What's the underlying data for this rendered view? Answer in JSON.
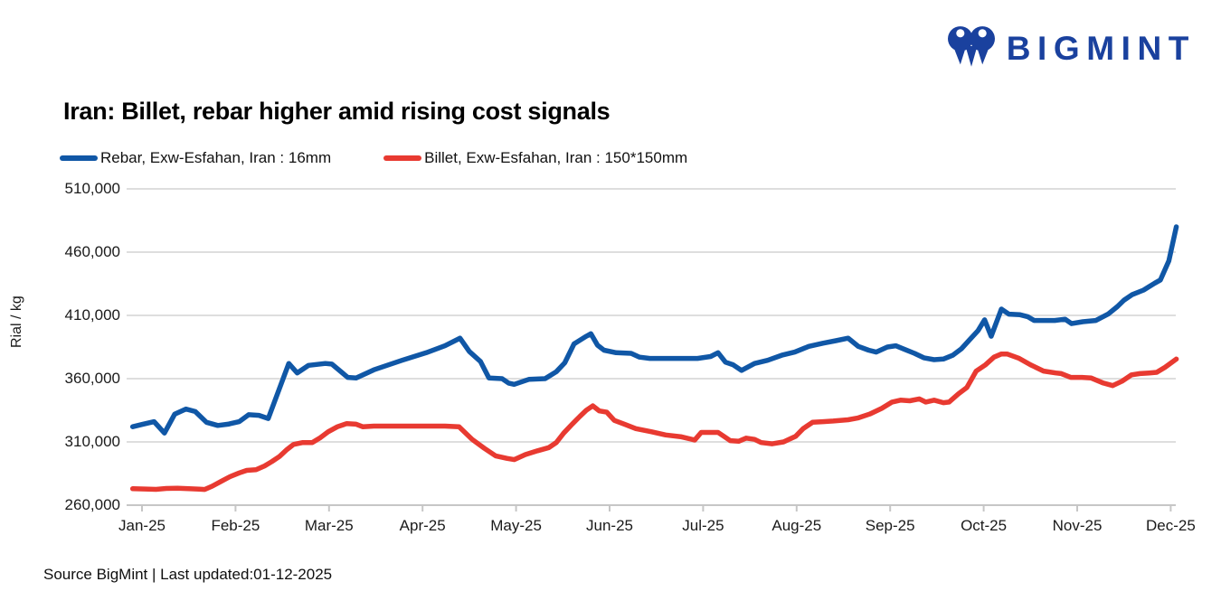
{
  "brand": {
    "name": "BIGMINT",
    "color": "#1A419E"
  },
  "title": "Iran: Billet, rebar higher amid rising cost signals",
  "source_note": "Source BigMint | Last updated:01-12-2025",
  "chart_data": {
    "type": "line",
    "title": "Iran: Billet, rebar higher amid rising cost signals",
    "xlabel": "",
    "ylabel": "Rial / kg",
    "ylim": [
      260000,
      510000
    ],
    "grid": true,
    "legend_position": "top-left",
    "x_ticks": [
      "Jan-25",
      "Feb-25",
      "Mar-25",
      "Apr-25",
      "May-25",
      "Jun-25",
      "Jul-25",
      "Aug-25",
      "Sep-25",
      "Oct-25",
      "Nov-25",
      "Dec-25"
    ],
    "y_ticks": [
      {
        "label": "510,000",
        "value": 510000
      },
      {
        "label": "460,000",
        "value": 460000
      },
      {
        "label": "410,000",
        "value": 410000
      },
      {
        "label": "360,000",
        "value": 360000
      },
      {
        "label": "310,000",
        "value": 310000
      },
      {
        "label": "260,000",
        "value": 260000
      }
    ],
    "x_unit": "month index from Jan-25 tick (0 = Jan-25, 11 = Dec-25)",
    "series": [
      {
        "id": "rebar-16mm",
        "name": "Rebar, Exw-Esfahan, Iran : 16mm",
        "color": "#1057A6",
        "points": [
          [
            -0.1,
            322000
          ],
          [
            0.01,
            324000
          ],
          [
            0.13,
            326000
          ],
          [
            0.24,
            317000
          ],
          [
            0.35,
            332000
          ],
          [
            0.47,
            336000
          ],
          [
            0.57,
            334000
          ],
          [
            0.69,
            325500
          ],
          [
            0.81,
            323000
          ],
          [
            0.92,
            324000
          ],
          [
            1.04,
            326000
          ],
          [
            1.14,
            331500
          ],
          [
            1.25,
            331000
          ],
          [
            1.35,
            328500
          ],
          [
            1.57,
            372000
          ],
          [
            1.66,
            364500
          ],
          [
            1.78,
            370500
          ],
          [
            1.96,
            372000
          ],
          [
            2.03,
            371500
          ],
          [
            2.2,
            361000
          ],
          [
            2.29,
            360500
          ],
          [
            2.48,
            367000
          ],
          [
            2.78,
            374500
          ],
          [
            3.04,
            380500
          ],
          [
            3.24,
            386000
          ],
          [
            3.4,
            392000
          ],
          [
            3.5,
            381500
          ],
          [
            3.62,
            373500
          ],
          [
            3.71,
            360500
          ],
          [
            3.85,
            360000
          ],
          [
            3.92,
            356500
          ],
          [
            3.98,
            355500
          ],
          [
            4.14,
            359500
          ],
          [
            4.31,
            360000
          ],
          [
            4.43,
            365500
          ],
          [
            4.52,
            372500
          ],
          [
            4.62,
            387500
          ],
          [
            4.75,
            393500
          ],
          [
            4.8,
            395500
          ],
          [
            4.87,
            386500
          ],
          [
            4.94,
            382500
          ],
          [
            5.07,
            380500
          ],
          [
            5.23,
            380000
          ],
          [
            5.32,
            377000
          ],
          [
            5.43,
            376000
          ],
          [
            5.94,
            376000
          ],
          [
            6.08,
            377500
          ],
          [
            6.16,
            380500
          ],
          [
            6.24,
            373000
          ],
          [
            6.32,
            371000
          ],
          [
            6.41,
            366500
          ],
          [
            6.55,
            372000
          ],
          [
            6.69,
            374500
          ],
          [
            6.84,
            378500
          ],
          [
            6.98,
            381000
          ],
          [
            7.13,
            385500
          ],
          [
            7.28,
            388000
          ],
          [
            7.42,
            390000
          ],
          [
            7.55,
            392000
          ],
          [
            7.66,
            385500
          ],
          [
            7.77,
            382500
          ],
          [
            7.85,
            381000
          ],
          [
            7.97,
            385000
          ],
          [
            8.06,
            386000
          ],
          [
            8.16,
            383000
          ],
          [
            8.26,
            380000
          ],
          [
            8.36,
            376500
          ],
          [
            8.47,
            375000
          ],
          [
            8.57,
            375500
          ],
          [
            8.67,
            378500
          ],
          [
            8.76,
            383500
          ],
          [
            8.84,
            390000
          ],
          [
            8.94,
            398000
          ],
          [
            9.01,
            406500
          ],
          [
            9.08,
            393500
          ],
          [
            9.19,
            415000
          ],
          [
            9.27,
            411000
          ],
          [
            9.39,
            410500
          ],
          [
            9.47,
            409000
          ],
          [
            9.54,
            406000
          ],
          [
            9.76,
            406000
          ],
          [
            9.87,
            407000
          ],
          [
            9.94,
            403500
          ],
          [
            10.06,
            405000
          ],
          [
            10.2,
            406000
          ],
          [
            10.33,
            411000
          ],
          [
            10.43,
            417000
          ],
          [
            10.5,
            422000
          ],
          [
            10.59,
            426500
          ],
          [
            10.71,
            430000
          ],
          [
            10.83,
            435500
          ],
          [
            10.89,
            438000
          ],
          [
            10.98,
            453000
          ],
          [
            11.06,
            480000
          ]
        ]
      },
      {
        "id": "billet-150x150",
        "name": "Billet, Exw-Esfahan, Iran : 150*150mm",
        "color": "#E83A31",
        "points": [
          [
            -0.1,
            273000
          ],
          [
            0.03,
            272800
          ],
          [
            0.15,
            272500
          ],
          [
            0.26,
            273200
          ],
          [
            0.38,
            273400
          ],
          [
            0.5,
            273000
          ],
          [
            0.61,
            272700
          ],
          [
            0.67,
            272400
          ],
          [
            0.75,
            275000
          ],
          [
            0.85,
            279000
          ],
          [
            0.94,
            282500
          ],
          [
            1.04,
            285500
          ],
          [
            1.12,
            287500
          ],
          [
            1.22,
            288000
          ],
          [
            1.31,
            291000
          ],
          [
            1.39,
            294500
          ],
          [
            1.47,
            298500
          ],
          [
            1.55,
            304000
          ],
          [
            1.62,
            308000
          ],
          [
            1.72,
            309500
          ],
          [
            1.82,
            309500
          ],
          [
            1.9,
            313000
          ],
          [
            1.99,
            318000
          ],
          [
            2.09,
            322000
          ],
          [
            2.19,
            324500
          ],
          [
            2.29,
            324000
          ],
          [
            2.36,
            322000
          ],
          [
            2.48,
            322500
          ],
          [
            2.66,
            322500
          ],
          [
            2.85,
            322500
          ],
          [
            3.04,
            322500
          ],
          [
            3.24,
            322500
          ],
          [
            3.39,
            322000
          ],
          [
            3.53,
            312000
          ],
          [
            3.66,
            305000
          ],
          [
            3.78,
            299000
          ],
          [
            3.9,
            297000
          ],
          [
            3.98,
            296000
          ],
          [
            4.1,
            300000
          ],
          [
            4.23,
            303000
          ],
          [
            4.35,
            305500
          ],
          [
            4.43,
            309500
          ],
          [
            4.51,
            317000
          ],
          [
            4.6,
            324000
          ],
          [
            4.68,
            330000
          ],
          [
            4.75,
            335000
          ],
          [
            4.82,
            338500
          ],
          [
            4.89,
            334500
          ],
          [
            4.97,
            333500
          ],
          [
            5.05,
            327000
          ],
          [
            5.16,
            324000
          ],
          [
            5.28,
            320500
          ],
          [
            5.45,
            318000
          ],
          [
            5.6,
            315500
          ],
          [
            5.77,
            314000
          ],
          [
            5.91,
            311500
          ],
          [
            5.98,
            317500
          ],
          [
            6.16,
            317500
          ],
          [
            6.23,
            314000
          ],
          [
            6.29,
            311000
          ],
          [
            6.38,
            310500
          ],
          [
            6.46,
            313000
          ],
          [
            6.55,
            312000
          ],
          [
            6.62,
            309500
          ],
          [
            6.74,
            308500
          ],
          [
            6.86,
            310000
          ],
          [
            6.99,
            314500
          ],
          [
            7.07,
            320500
          ],
          [
            7.17,
            325500
          ],
          [
            7.28,
            326000
          ],
          [
            7.39,
            326500
          ],
          [
            7.55,
            327500
          ],
          [
            7.66,
            329000
          ],
          [
            7.78,
            332000
          ],
          [
            7.91,
            336500
          ],
          [
            8.02,
            341500
          ],
          [
            8.11,
            343000
          ],
          [
            8.21,
            342500
          ],
          [
            8.31,
            344000
          ],
          [
            8.38,
            341500
          ],
          [
            8.47,
            343000
          ],
          [
            8.57,
            341000
          ],
          [
            8.63,
            341500
          ],
          [
            8.73,
            348000
          ],
          [
            8.82,
            353000
          ],
          [
            8.92,
            366000
          ],
          [
            9.02,
            371000
          ],
          [
            9.11,
            377000
          ],
          [
            9.19,
            379500
          ],
          [
            9.25,
            379500
          ],
          [
            9.38,
            376000
          ],
          [
            9.5,
            371000
          ],
          [
            9.64,
            366000
          ],
          [
            9.77,
            364500
          ],
          [
            9.83,
            364000
          ],
          [
            9.93,
            361000
          ],
          [
            10.05,
            361000
          ],
          [
            10.15,
            360500
          ],
          [
            10.28,
            356500
          ],
          [
            10.38,
            354500
          ],
          [
            10.48,
            358000
          ],
          [
            10.58,
            363000
          ],
          [
            10.67,
            364000
          ],
          [
            10.77,
            364500
          ],
          [
            10.85,
            365000
          ],
          [
            10.94,
            369000
          ],
          [
            11.06,
            375500
          ]
        ]
      }
    ],
    "colors": {
      "grid": "#dedede",
      "axis": "#c6c6c6",
      "text": "#1a1a1a"
    }
  }
}
